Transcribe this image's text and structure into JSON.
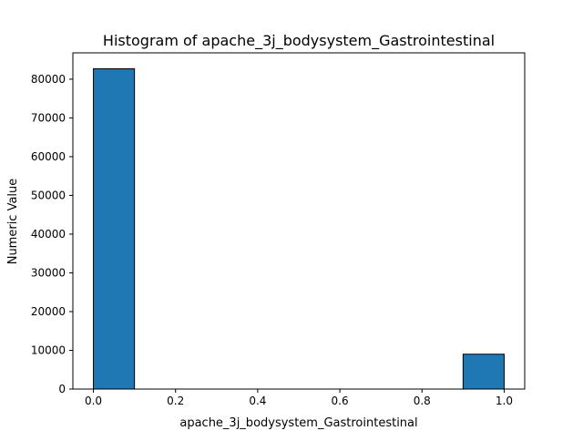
{
  "chart_data": {
    "type": "bar",
    "title": "Histogram of apache_3j_bodysystem_Gastrointestinal",
    "xlabel": "apache_3j_bodysystem_Gastrointestinal",
    "ylabel": "Numeric Value",
    "xlim": [
      -0.05,
      1.05
    ],
    "ylim": [
      0,
      86800
    ],
    "x_ticks": [
      0.0,
      0.2,
      0.4,
      0.6,
      0.8,
      1.0
    ],
    "x_tick_labels": [
      "0.0",
      "0.2",
      "0.4",
      "0.6",
      "0.8",
      "1.0"
    ],
    "y_ticks": [
      0,
      10000,
      20000,
      30000,
      40000,
      50000,
      60000,
      70000,
      80000
    ],
    "y_tick_labels": [
      "0",
      "10000",
      "20000",
      "30000",
      "40000",
      "50000",
      "60000",
      "70000",
      "80000"
    ],
    "bins": [
      {
        "x0": 0.0,
        "x1": 0.1,
        "count": 82700
      },
      {
        "x0": 0.9,
        "x1": 1.0,
        "count": 9000
      }
    ],
    "grid": false,
    "bar_color": "#1f77b4",
    "edge_color": "#000000"
  }
}
